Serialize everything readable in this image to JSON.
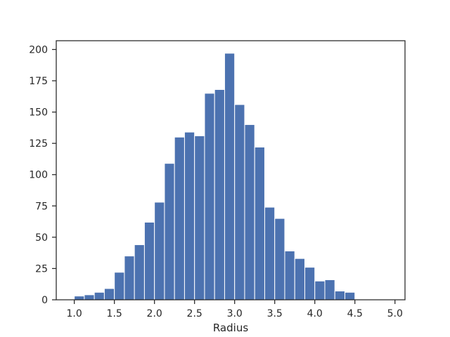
{
  "chart_data": {
    "type": "bar",
    "title": "",
    "xlabel": "Radius",
    "ylabel": "",
    "bin_width": 0.125,
    "bins": [
      {
        "x0": 1.0,
        "count": 3
      },
      {
        "x0": 1.125,
        "count": 4
      },
      {
        "x0": 1.25,
        "count": 6
      },
      {
        "x0": 1.375,
        "count": 9
      },
      {
        "x0": 1.5,
        "count": 22
      },
      {
        "x0": 1.625,
        "count": 35
      },
      {
        "x0": 1.75,
        "count": 44
      },
      {
        "x0": 1.875,
        "count": 62
      },
      {
        "x0": 2.0,
        "count": 78
      },
      {
        "x0": 2.125,
        "count": 109
      },
      {
        "x0": 2.25,
        "count": 130
      },
      {
        "x0": 2.375,
        "count": 134
      },
      {
        "x0": 2.5,
        "count": 131
      },
      {
        "x0": 2.625,
        "count": 165
      },
      {
        "x0": 2.75,
        "count": 168
      },
      {
        "x0": 2.875,
        "count": 197
      },
      {
        "x0": 3.0,
        "count": 156
      },
      {
        "x0": 3.125,
        "count": 140
      },
      {
        "x0": 3.25,
        "count": 122
      },
      {
        "x0": 3.375,
        "count": 74
      },
      {
        "x0": 3.5,
        "count": 65
      },
      {
        "x0": 3.625,
        "count": 39
      },
      {
        "x0": 3.75,
        "count": 33
      },
      {
        "x0": 3.875,
        "count": 26
      },
      {
        "x0": 4.0,
        "count": 15
      },
      {
        "x0": 4.125,
        "count": 16
      },
      {
        "x0": 4.25,
        "count": 7
      },
      {
        "x0": 4.375,
        "count": 6
      },
      {
        "x0": 4.5,
        "count": 0
      },
      {
        "x0": 4.625,
        "count": 0
      },
      {
        "x0": 4.75,
        "count": 0
      },
      {
        "x0": 4.875,
        "count": 0
      }
    ],
    "xlim": [
      0.775,
      5.125
    ],
    "ylim": [
      0,
      207
    ],
    "xticks": [
      1.0,
      1.5,
      2.0,
      2.5,
      3.0,
      3.5,
      4.0,
      4.5,
      5.0
    ],
    "xtick_labels": [
      "1.0",
      "1.5",
      "2.0",
      "2.5",
      "3.0",
      "3.5",
      "4.0",
      "4.5",
      "5.0"
    ],
    "yticks": [
      0,
      25,
      50,
      75,
      100,
      125,
      150,
      175,
      200
    ],
    "ytick_labels": [
      "0",
      "25",
      "50",
      "75",
      "100",
      "125",
      "150",
      "175",
      "200"
    ],
    "bar_color": "#4c72b0",
    "edge_color": "#ffffff",
    "grid": false,
    "legend": "none"
  }
}
